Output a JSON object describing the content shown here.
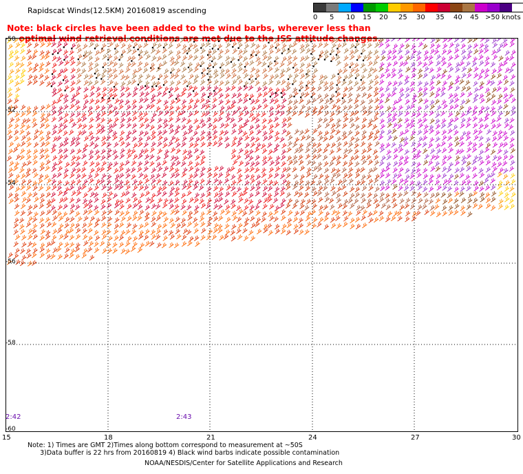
{
  "title": "Rapidscat Winds(12.5KM) 20160819 ascending",
  "note": {
    "line1": "Note: black circles have been added to the wind barbs, wherever less than",
    "line2": "optimal wind retrieval conditions are met due to the ISS attitude changes."
  },
  "legend": {
    "labels": [
      "0",
      "5",
      "10",
      "15",
      "20",
      "25",
      "30",
      "35",
      "40",
      "45",
      ">50 knots"
    ],
    "colors": [
      "#3a3a3a",
      "#7a7a7a",
      "#00aaff",
      "#0000ff",
      "#009900",
      "#00cc00",
      "#ffcc00",
      "#ff9900",
      "#ff6600",
      "#ff0000",
      "#cc0033",
      "#8b4513",
      "#aa7744",
      "#cc00cc",
      "#9900cc",
      "#4b0082"
    ]
  },
  "map": {
    "lat_labels": [
      "-50",
      "-52",
      "-54",
      "-56",
      "-58",
      "-60"
    ],
    "lon_labels": [
      "15",
      "18",
      "21",
      "24",
      "27",
      "30"
    ],
    "time_labels": [
      "2:42",
      "2:43"
    ]
  },
  "footnote": {
    "line1": "Note: 1) Times are GMT 2)Times along bottom correspond to measurement at ~50S",
    "line2": "      3)Data buffer is 22 hrs from 20160819 4) Black wind barbs indicate possible contamination"
  },
  "credit": "NOAA/NESDIS/Center for Satellite Applications and Research"
}
